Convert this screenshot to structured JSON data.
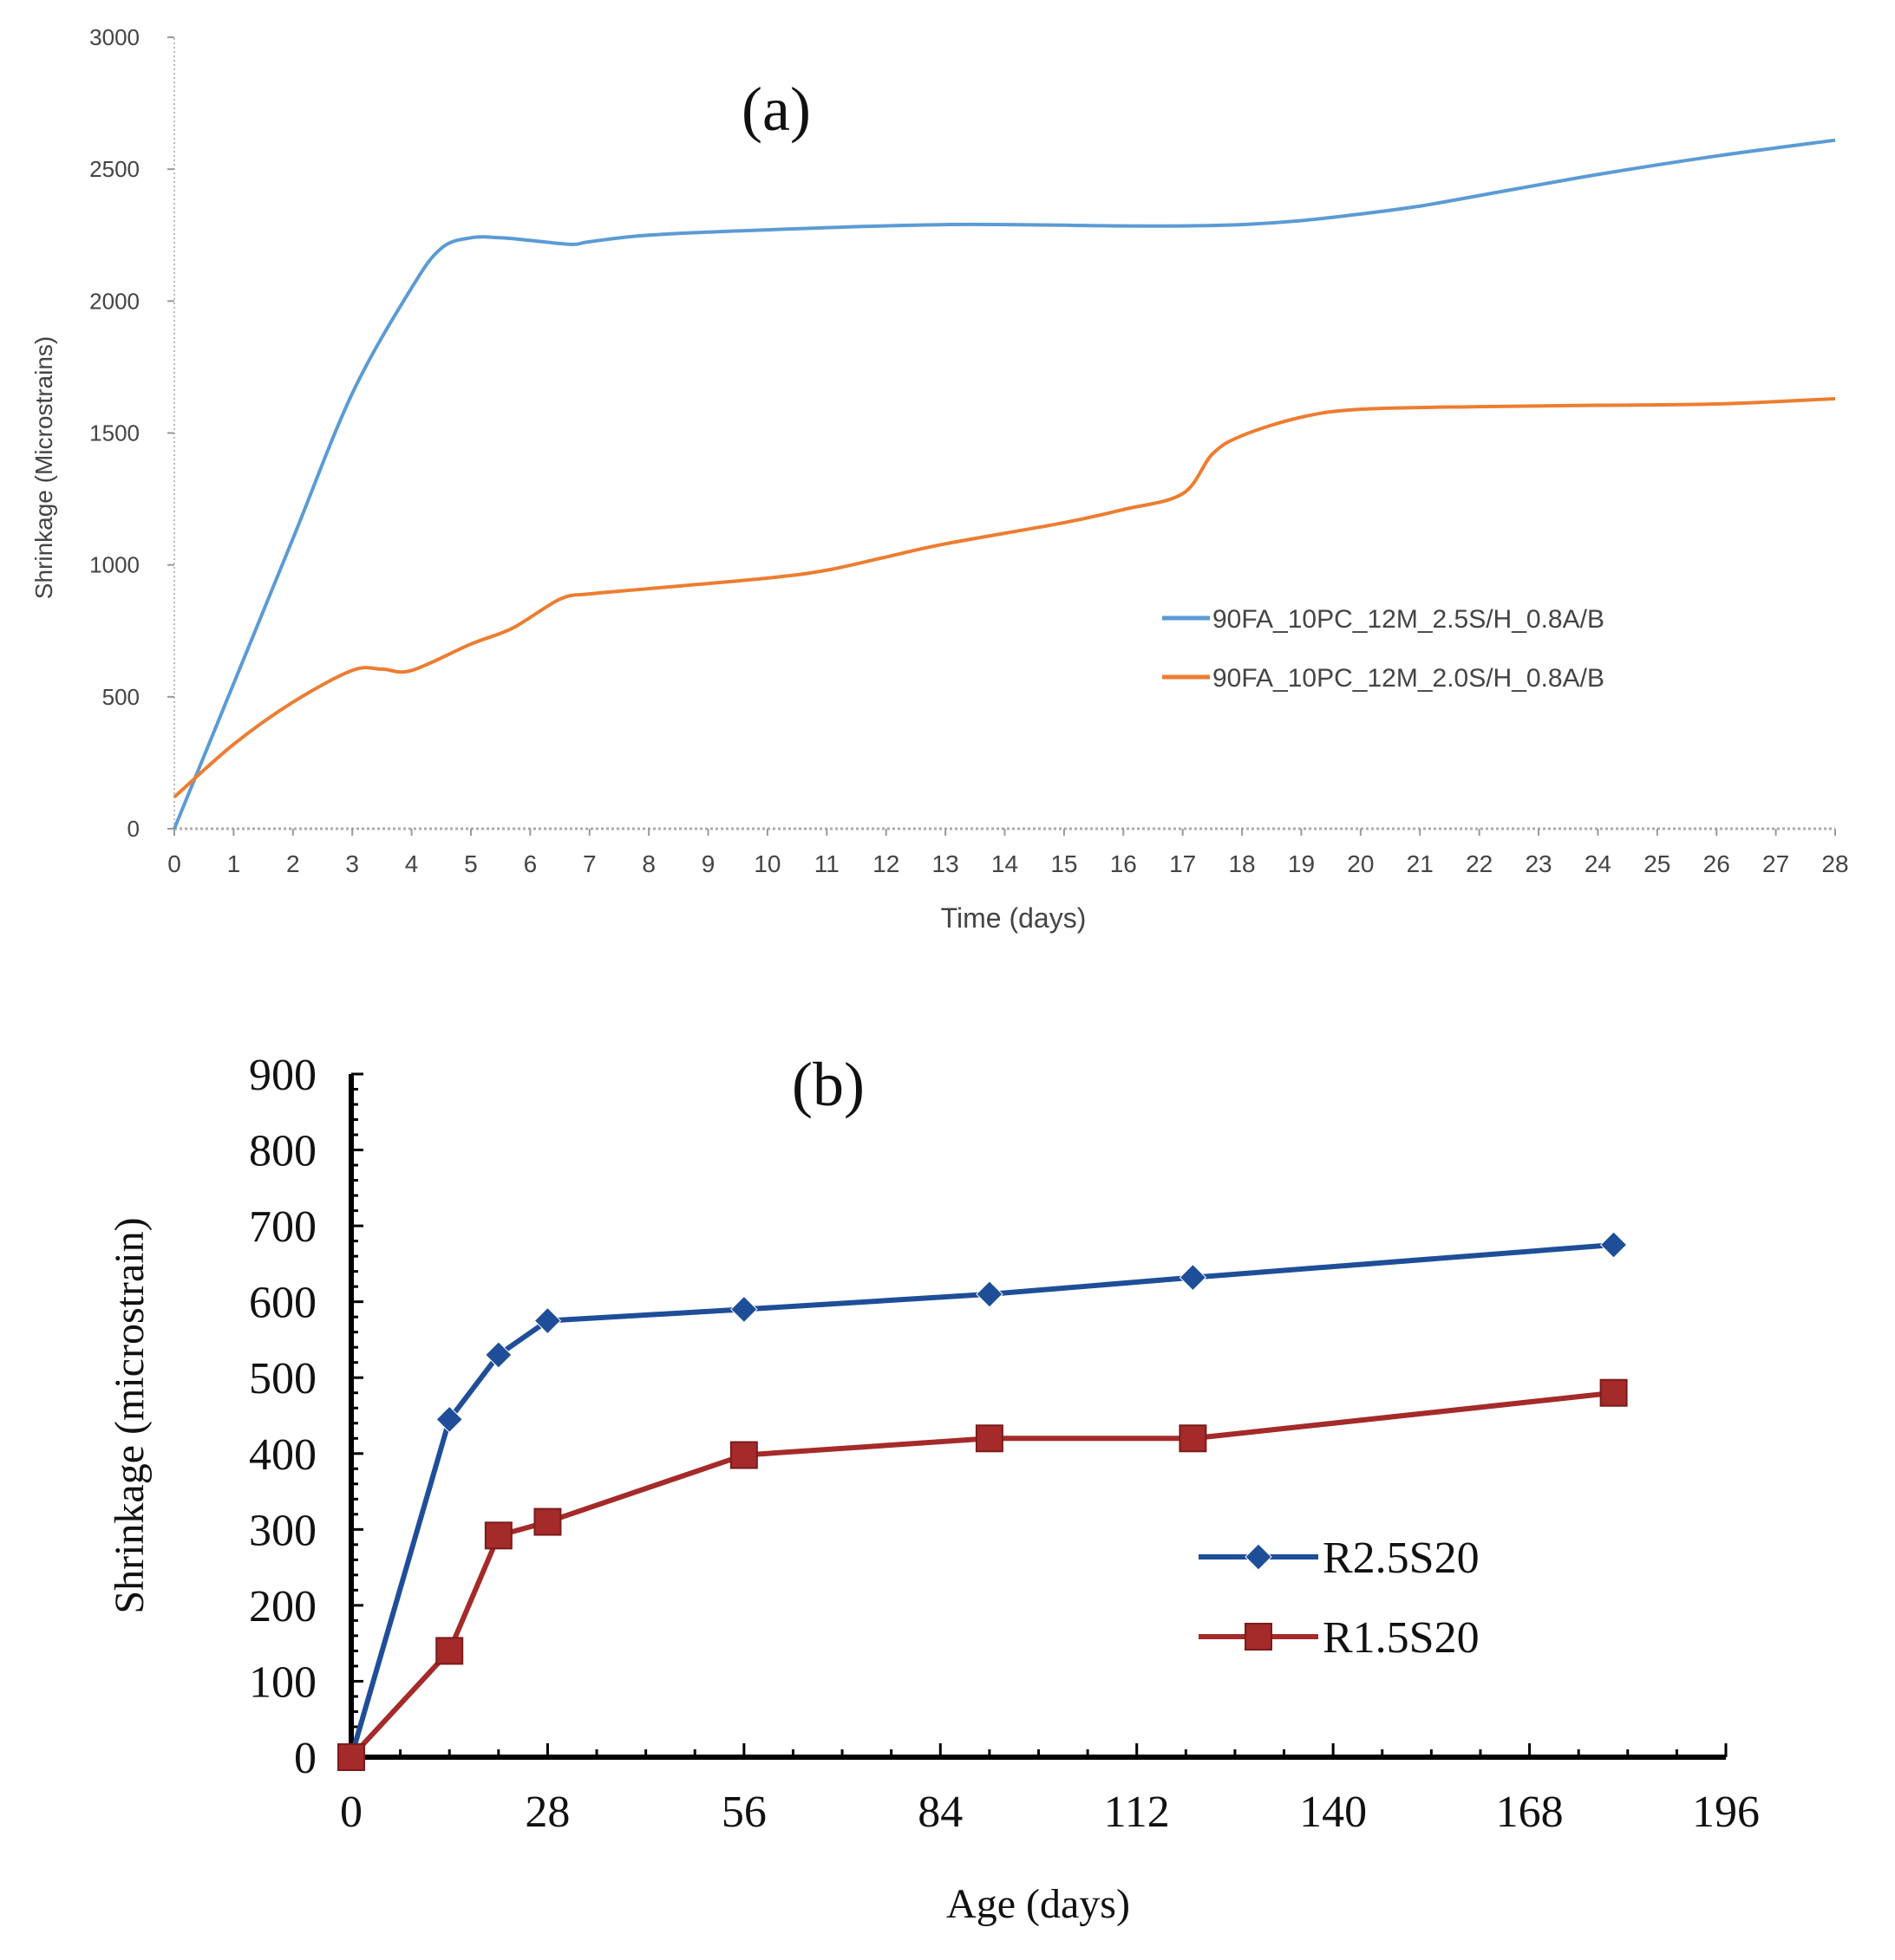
{
  "chart_data": [
    {
      "type": "line",
      "panel_label": "(a)",
      "xlabel": "Time (days)",
      "ylabel": "Shrinkage (Microstrains)",
      "xlim": [
        0,
        28
      ],
      "ylim": [
        0,
        3000
      ],
      "xticks": [
        0,
        1,
        2,
        3,
        4,
        5,
        6,
        7,
        8,
        9,
        10,
        11,
        12,
        13,
        14,
        15,
        16,
        17,
        18,
        19,
        20,
        21,
        22,
        23,
        24,
        25,
        26,
        27,
        28
      ],
      "yticks": [
        0,
        500,
        1000,
        1500,
        2000,
        2500,
        3000
      ],
      "legend_position": "center-right",
      "series": [
        {
          "name": "90FA_10PC_12M_2.5S/H_0.8A/B",
          "color": "#5b9bd5",
          "x": [
            0,
            1,
            2,
            3,
            4,
            4.5,
            5,
            5.5,
            6,
            6.7,
            7,
            8,
            10,
            13,
            16,
            17,
            18,
            19,
            20,
            21,
            22,
            24,
            26,
            28
          ],
          "y": [
            0,
            550,
            1100,
            1650,
            2050,
            2200,
            2240,
            2240,
            2230,
            2215,
            2225,
            2250,
            2270,
            2290,
            2285,
            2285,
            2290,
            2305,
            2330,
            2360,
            2400,
            2480,
            2550,
            2610
          ]
        },
        {
          "name": "90FA_10PC_12M_2.0S/H_0.8A/B",
          "color": "#ed7d31",
          "x": [
            0,
            1,
            2,
            3,
            3.5,
            4,
            5,
            5.7,
            6.5,
            7,
            8,
            10,
            11,
            12,
            13,
            15,
            16,
            17,
            17.5,
            18,
            19,
            20,
            22,
            24,
            26,
            28
          ],
          "y": [
            120,
            320,
            480,
            600,
            605,
            600,
            700,
            760,
            870,
            890,
            910,
            950,
            980,
            1030,
            1080,
            1160,
            1210,
            1270,
            1420,
            1490,
            1560,
            1590,
            1600,
            1605,
            1610,
            1630
          ]
        }
      ]
    },
    {
      "type": "line",
      "panel_label": "(b)",
      "xlabel": "Age (days)",
      "ylabel": "Shrinkage (microstrain)",
      "xlim": [
        0,
        196
      ],
      "ylim": [
        0,
        900
      ],
      "xticks": [
        0,
        28,
        56,
        84,
        112,
        140,
        168,
        196
      ],
      "yticks": [
        0,
        100,
        200,
        300,
        400,
        500,
        600,
        700,
        800,
        900
      ],
      "legend_position": "center-right",
      "series": [
        {
          "name": "R2.5S20",
          "color": "#1f4e99",
          "marker": "diamond",
          "x": [
            0,
            14,
            21,
            28,
            56,
            91,
            120,
            180
          ],
          "y": [
            0,
            445,
            530,
            575,
            590,
            610,
            632,
            675
          ]
        },
        {
          "name": "R1.5S20",
          "color": "#a52a2a",
          "marker": "square",
          "x": [
            0,
            14,
            21,
            28,
            56,
            91,
            120,
            180
          ],
          "y": [
            0,
            140,
            292,
            310,
            398,
            420,
            420,
            480
          ]
        }
      ]
    }
  ]
}
